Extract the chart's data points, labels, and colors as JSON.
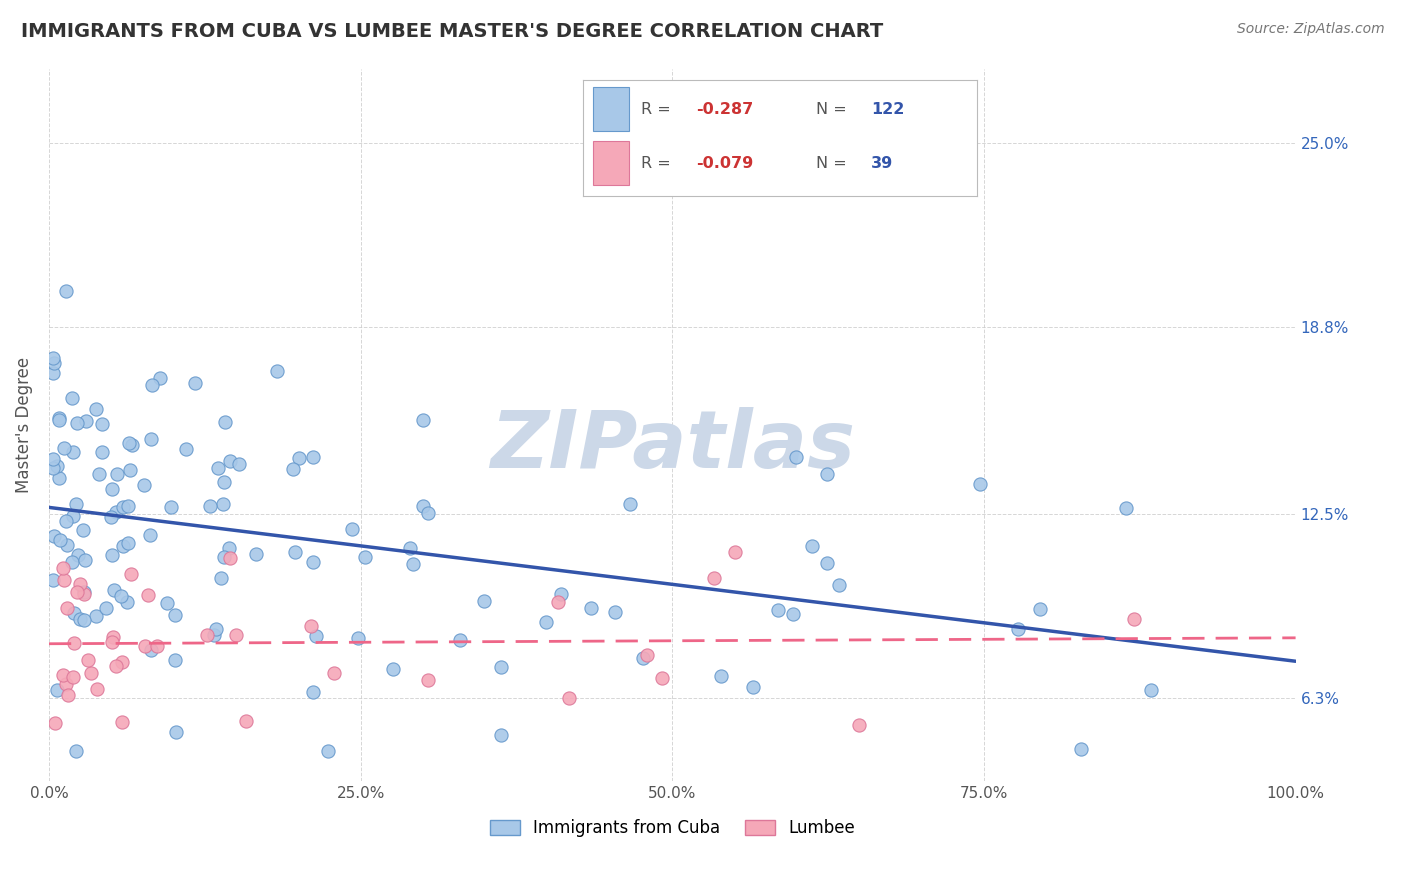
{
  "title": "IMMIGRANTS FROM CUBA VS LUMBEE MASTER'S DEGREE CORRELATION CHART",
  "source_text": "Source: ZipAtlas.com",
  "ylabel": "Master's Degree",
  "xlim": [
    0.0,
    100.0
  ],
  "ylim": [
    3.5,
    27.5
  ],
  "yticks": [
    6.3,
    12.5,
    18.8,
    25.0
  ],
  "ytick_labels": [
    "6.3%",
    "12.5%",
    "18.8%",
    "25.0%"
  ],
  "xticks": [
    0.0,
    25.0,
    50.0,
    75.0,
    100.0
  ],
  "xtick_labels": [
    "0.0%",
    "25.0%",
    "50.0%",
    "75.0%",
    "100.0%"
  ],
  "cuba_color": "#a8c8e8",
  "cuba_edge_color": "#6699cc",
  "lumbee_color": "#f5a8b8",
  "lumbee_edge_color": "#dd7799",
  "cuba_line_color": "#3355aa",
  "lumbee_line_color": "#ee6688",
  "watermark": "ZIPatlas",
  "watermark_color": "#ccd8e8",
  "background_color": "#ffffff",
  "grid_color": "#cccccc",
  "title_color": "#333333",
  "right_ytick_color": "#3366bb",
  "cuba_R": -0.287,
  "cuba_N": 122,
  "lumbee_R": -0.079,
  "lumbee_N": 39,
  "legend_R_color": "#cc3333",
  "legend_N_color": "#3355aa",
  "legend_label_color": "#555555",
  "cuba_legend_label": "Immigrants from Cuba",
  "lumbee_legend_label": "Lumbee"
}
